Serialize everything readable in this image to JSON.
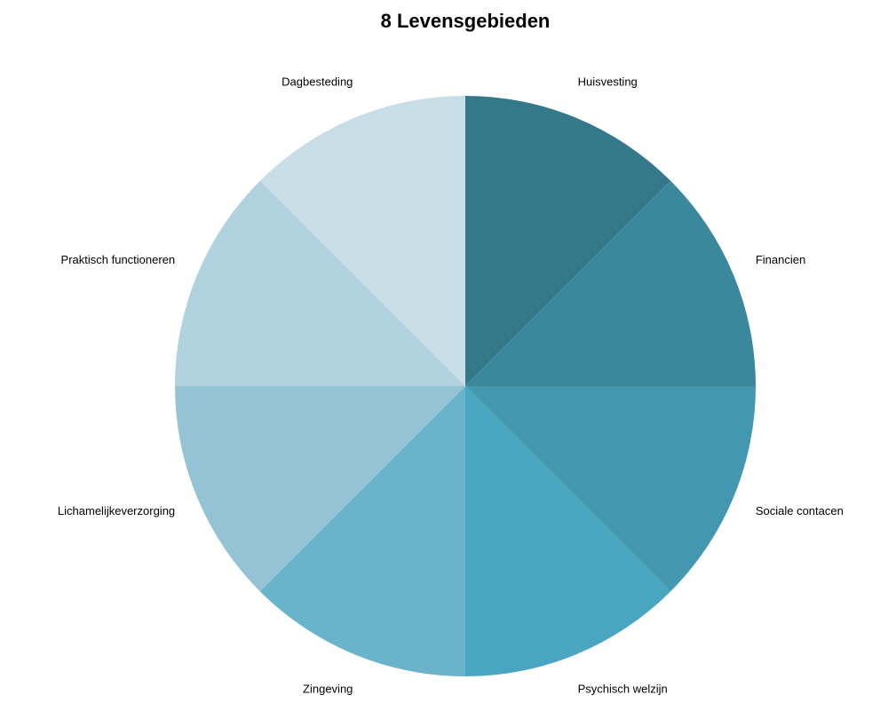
{
  "chart_data": {
    "type": "pie",
    "title": "8 Levensgebieden",
    "categories": [
      "Huisvesting",
      "Financien",
      "Sociale contacen",
      "Psychisch welzijn",
      "Zingeving",
      "Lichamelijkeverzorging",
      "Praktisch functioneren",
      "Dagbesteding"
    ],
    "values": [
      12.5,
      12.5,
      12.5,
      12.5,
      12.5,
      12.5,
      12.5,
      12.5
    ],
    "colors": [
      "#34788a",
      "#3b889c",
      "#4397ae",
      "#4aa6c0",
      "#69b3cb",
      "#93c3d4",
      "#afd2de",
      "#c8dee6"
    ]
  }
}
